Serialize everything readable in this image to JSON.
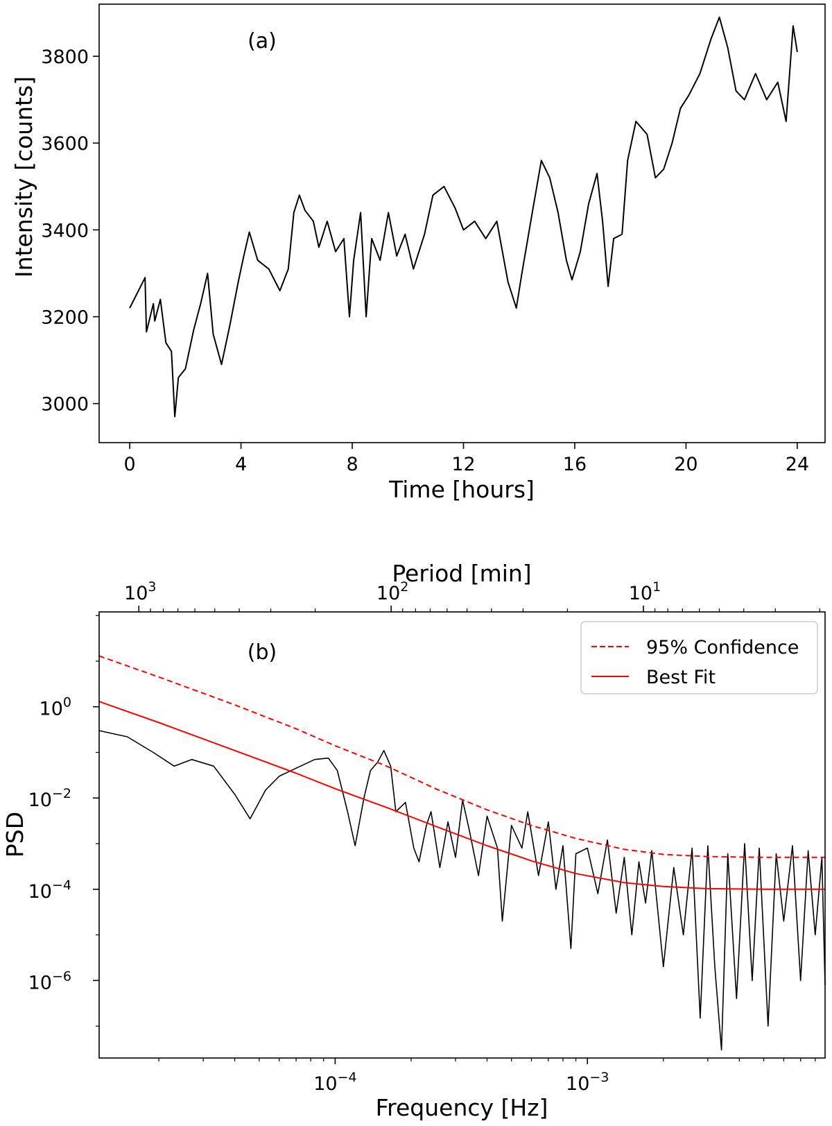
{
  "chart_data": [
    {
      "type": "line",
      "panel_label": "(a)",
      "xlabel": "Time [hours]",
      "ylabel": "Intensity [counts]",
      "xlim": [
        -1.1,
        25.0
      ],
      "ylim": [
        2910,
        3920
      ],
      "xticks": [
        0,
        4,
        8,
        12,
        16,
        20,
        24
      ],
      "yticks": [
        3000,
        3200,
        3400,
        3600,
        3800
      ],
      "grid": false,
      "series": [
        {
          "color": "#000000",
          "points": [
            [
              0.0,
              3220
            ],
            [
              0.55,
              3290
            ],
            [
              0.6,
              3165
            ],
            [
              0.85,
              3230
            ],
            [
              0.9,
              3190
            ],
            [
              1.1,
              3240
            ],
            [
              1.3,
              3140
            ],
            [
              1.5,
              3120
            ],
            [
              1.62,
              2970
            ],
            [
              1.75,
              3060
            ],
            [
              2.0,
              3080
            ],
            [
              2.3,
              3170
            ],
            [
              2.55,
              3230
            ],
            [
              2.8,
              3300
            ],
            [
              3.0,
              3160
            ],
            [
              3.3,
              3090
            ],
            [
              3.6,
              3180
            ],
            [
              3.9,
              3280
            ],
            [
              4.1,
              3340
            ],
            [
              4.3,
              3395
            ],
            [
              4.6,
              3330
            ],
            [
              5.0,
              3310
            ],
            [
              5.4,
              3260
            ],
            [
              5.7,
              3310
            ],
            [
              5.9,
              3440
            ],
            [
              6.1,
              3480
            ],
            [
              6.3,
              3445
            ],
            [
              6.6,
              3420
            ],
            [
              6.8,
              3360
            ],
            [
              7.1,
              3420
            ],
            [
              7.4,
              3350
            ],
            [
              7.7,
              3380
            ],
            [
              7.9,
              3200
            ],
            [
              8.05,
              3330
            ],
            [
              8.3,
              3440
            ],
            [
              8.5,
              3200
            ],
            [
              8.7,
              3380
            ],
            [
              9.0,
              3330
            ],
            [
              9.3,
              3440
            ],
            [
              9.6,
              3340
            ],
            [
              9.9,
              3390
            ],
            [
              10.2,
              3310
            ],
            [
              10.6,
              3390
            ],
            [
              10.9,
              3480
            ],
            [
              11.3,
              3500
            ],
            [
              11.7,
              3450
            ],
            [
              12.0,
              3400
            ],
            [
              12.4,
              3420
            ],
            [
              12.8,
              3380
            ],
            [
              13.2,
              3420
            ],
            [
              13.6,
              3280
            ],
            [
              13.9,
              3220
            ],
            [
              14.1,
              3300
            ],
            [
              14.5,
              3450
            ],
            [
              14.8,
              3560
            ],
            [
              15.1,
              3520
            ],
            [
              15.4,
              3440
            ],
            [
              15.7,
              3330
            ],
            [
              15.9,
              3285
            ],
            [
              16.2,
              3350
            ],
            [
              16.5,
              3460
            ],
            [
              16.8,
              3530
            ],
            [
              17.0,
              3420
            ],
            [
              17.2,
              3270
            ],
            [
              17.4,
              3380
            ],
            [
              17.7,
              3390
            ],
            [
              17.9,
              3560
            ],
            [
              18.2,
              3650
            ],
            [
              18.6,
              3620
            ],
            [
              18.9,
              3520
            ],
            [
              19.2,
              3540
            ],
            [
              19.5,
              3600
            ],
            [
              19.8,
              3680
            ],
            [
              20.1,
              3710
            ],
            [
              20.5,
              3760
            ],
            [
              20.9,
              3840
            ],
            [
              21.2,
              3890
            ],
            [
              21.5,
              3820
            ],
            [
              21.8,
              3720
            ],
            [
              22.1,
              3700
            ],
            [
              22.5,
              3760
            ],
            [
              22.9,
              3700
            ],
            [
              23.3,
              3740
            ],
            [
              23.6,
              3650
            ],
            [
              23.85,
              3870
            ],
            [
              24.0,
              3810
            ]
          ]
        }
      ]
    },
    {
      "type": "line",
      "panel_label": "(b)",
      "xlabel": "Frequency [Hz]",
      "ylabel": "PSD",
      "top_xlabel": "Period [min]",
      "x_scale": "log",
      "y_scale": "log",
      "xlim": [
        1.16e-05,
        0.00875
      ],
      "ylim": [
        2e-08,
        120
      ],
      "xticks": [
        0.0001,
        0.001
      ],
      "xtick_labels": [
        "10",
        "10"
      ],
      "xtick_exponents": [
        "−4",
        "−3"
      ],
      "yticks": [
        1,
        0.01,
        0.0001,
        1e-06
      ],
      "ytick_labels": [
        "10",
        "10",
        "10",
        "10"
      ],
      "ytick_exponents": [
        "0",
        "−2",
        "−4",
        "−6"
      ],
      "top_xticks_min": [
        1000,
        100,
        10
      ],
      "top_xtick_labels": [
        "10",
        "10",
        "10"
      ],
      "top_xtick_exponents": [
        "3",
        "2",
        "1"
      ],
      "grid": false,
      "legend": {
        "position": "top-right",
        "entries": [
          "95% Confidence",
          "Best Fit"
        ]
      },
      "series": [
        {
          "name": "95% Confidence",
          "color": "#ff0000",
          "style": "dashed",
          "points": [
            [
              1.16e-05,
              13
            ],
            [
              2e-05,
              4.5
            ],
            [
              4e-05,
              1.1
            ],
            [
              7e-05,
              0.33
            ],
            [
              0.0001,
              0.14
            ],
            [
              0.00016,
              0.05
            ],
            [
              0.00025,
              0.016
            ],
            [
              0.0004,
              0.0055
            ],
            [
              0.0006,
              0.0025
            ],
            [
              0.0009,
              0.0013
            ],
            [
              0.0014,
              0.00075
            ],
            [
              0.002,
              0.00058
            ],
            [
              0.003,
              0.00052
            ],
            [
              0.005,
              0.0005
            ],
            [
              0.00875,
              0.0005
            ]
          ]
        },
        {
          "name": "Best Fit",
          "color": "#ff0000",
          "style": "solid",
          "points": [
            [
              1.16e-05,
              1.3
            ],
            [
              2e-05,
              0.45
            ],
            [
              4e-05,
              0.11
            ],
            [
              7e-05,
              0.035
            ],
            [
              0.0001,
              0.016
            ],
            [
              0.00016,
              0.0062
            ],
            [
              0.00025,
              0.0024
            ],
            [
              0.0004,
              0.0009
            ],
            [
              0.0006,
              0.00042
            ],
            [
              0.0009,
              0.00022
            ],
            [
              0.0014,
              0.00014
            ],
            [
              0.002,
              0.000115
            ],
            [
              0.003,
              0.000103
            ],
            [
              0.005,
              0.0001
            ],
            [
              0.00875,
              0.0001
            ]
          ]
        },
        {
          "color": "#000000",
          "style": "solid",
          "points": [
            [
              1.16e-05,
              0.3
            ],
            [
              1.5e-05,
              0.22
            ],
            [
              1.9e-05,
              0.1
            ],
            [
              2.3e-05,
              0.05
            ],
            [
              2.7e-05,
              0.07
            ],
            [
              3.3e-05,
              0.05
            ],
            [
              4e-05,
              0.012
            ],
            [
              4.6e-05,
              0.0035
            ],
            [
              5.3e-05,
              0.015
            ],
            [
              6e-05,
              0.03
            ],
            [
              7e-05,
              0.045
            ],
            [
              8.3e-05,
              0.07
            ],
            [
              9.4e-05,
              0.075
            ],
            [
              0.000102,
              0.04
            ],
            [
              0.000112,
              0.005
            ],
            [
              0.00012,
              0.0009
            ],
            [
              0.00013,
              0.01
            ],
            [
              0.000138,
              0.04
            ],
            [
              0.000147,
              0.06
            ],
            [
              0.000156,
              0.11
            ],
            [
              0.000166,
              0.05
            ],
            [
              0.000174,
              0.005
            ],
            [
              0.00019,
              0.008
            ],
            [
              0.000205,
              0.0008
            ],
            [
              0.000215,
              0.0004
            ],
            [
              0.00023,
              0.0025
            ],
            [
              0.00024,
              0.005
            ],
            [
              0.00026,
              0.0003
            ],
            [
              0.00028,
              0.003
            ],
            [
              0.0003,
              0.0005
            ],
            [
              0.00032,
              0.009
            ],
            [
              0.00034,
              0.002
            ],
            [
              0.00037,
              0.0002
            ],
            [
              0.0004,
              0.004
            ],
            [
              0.00044,
              0.0008
            ],
            [
              0.00046,
              2e-05
            ],
            [
              0.0005,
              0.0025
            ],
            [
              0.00055,
              0.0008
            ],
            [
              0.00058,
              0.005
            ],
            [
              0.00064,
              0.0002
            ],
            [
              0.0007,
              0.003
            ],
            [
              0.00075,
              0.0001
            ],
            [
              0.0008,
              0.0009
            ],
            [
              0.00086,
              5e-06
            ],
            [
              0.0009,
              0.0006
            ],
            [
              0.001,
              0.0008
            ],
            [
              0.0011,
              8e-05
            ],
            [
              0.0012,
              0.0012
            ],
            [
              0.0013,
              3e-05
            ],
            [
              0.0014,
              0.0005
            ],
            [
              0.0015,
              1e-05
            ],
            [
              0.0016,
              0.0004
            ],
            [
              0.0017,
              5e-05
            ],
            [
              0.0018,
              0.0007
            ],
            [
              0.002,
              2e-06
            ],
            [
              0.0022,
              0.0003
            ],
            [
              0.0024,
              1e-05
            ],
            [
              0.0026,
              0.0008
            ],
            [
              0.0028,
              1.5e-07
            ],
            [
              0.003,
              0.0009
            ],
            [
              0.0032,
              2e-06
            ],
            [
              0.0034,
              3e-08
            ],
            [
              0.0036,
              0.0006
            ],
            [
              0.0039,
              4e-07
            ],
            [
              0.0042,
              0.001
            ],
            [
              0.0045,
              1e-06
            ],
            [
              0.0048,
              0.0008
            ],
            [
              0.0052,
              1e-07
            ],
            [
              0.0056,
              0.0006
            ],
            [
              0.006,
              2e-05
            ],
            [
              0.0065,
              0.0009
            ],
            [
              0.007,
              1e-06
            ],
            [
              0.0075,
              0.0007
            ],
            [
              0.008,
              1e-05
            ],
            [
              0.0085,
              0.0005
            ],
            [
              0.00875,
              8e-07
            ]
          ]
        }
      ]
    }
  ]
}
